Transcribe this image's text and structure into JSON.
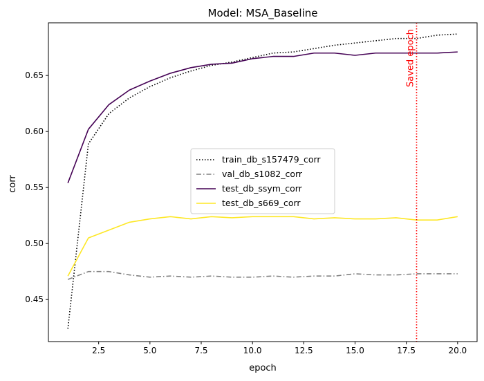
{
  "chart_data": {
    "type": "line",
    "title": "Model: MSA_Baseline",
    "xlabel": "epoch",
    "ylabel": "corr",
    "xlim": [
      0.05,
      20.95
    ],
    "ylim": [
      0.4125,
      0.697
    ],
    "xticks": [
      2.5,
      5.0,
      7.5,
      10.0,
      12.5,
      15.0,
      17.5,
      20.0
    ],
    "xtick_labels": [
      "2.5",
      "5.0",
      "7.5",
      "10.0",
      "12.5",
      "15.0",
      "17.5",
      "20.0"
    ],
    "yticks": [
      0.45,
      0.5,
      0.55,
      0.6,
      0.65
    ],
    "ytick_labels": [
      "0.45",
      "0.50",
      "0.55",
      "0.60",
      "0.65"
    ],
    "grid": false,
    "legend_position": "center",
    "x": [
      1,
      2,
      3,
      4,
      5,
      6,
      7,
      8,
      9,
      10,
      11,
      12,
      13,
      14,
      15,
      16,
      17,
      18,
      19,
      20
    ],
    "series": [
      {
        "name": "train_db_s157479_corr",
        "color": "#000000",
        "style": "dotted",
        "values": [
          0.424,
          0.589,
          0.616,
          0.63,
          0.64,
          0.648,
          0.654,
          0.659,
          0.662,
          0.666,
          0.67,
          0.671,
          0.674,
          0.677,
          0.679,
          0.681,
          0.683,
          0.683,
          0.686,
          0.687
        ]
      },
      {
        "name": "val_db_s1082_corr",
        "color": "#808080",
        "style": "dashdot",
        "values": [
          0.468,
          0.475,
          0.475,
          0.472,
          0.47,
          0.471,
          0.47,
          0.471,
          0.47,
          0.47,
          0.471,
          0.47,
          0.471,
          0.471,
          0.473,
          0.472,
          0.472,
          0.473,
          0.473,
          0.473
        ]
      },
      {
        "name": "test_db_ssym_corr",
        "color": "#440154",
        "style": "solid",
        "values": [
          0.554,
          0.602,
          0.624,
          0.637,
          0.645,
          0.652,
          0.657,
          0.66,
          0.661,
          0.665,
          0.667,
          0.667,
          0.67,
          0.67,
          0.668,
          0.67,
          0.67,
          0.67,
          0.67,
          0.671
        ]
      },
      {
        "name": "test_db_s669_corr",
        "color": "#fde725",
        "style": "solid",
        "values": [
          0.471,
          0.505,
          0.512,
          0.519,
          0.522,
          0.524,
          0.522,
          0.524,
          0.523,
          0.524,
          0.524,
          0.524,
          0.522,
          0.523,
          0.522,
          0.522,
          0.523,
          0.521,
          0.521,
          0.524
        ]
      }
    ],
    "annotations": [
      {
        "type": "vline",
        "x": 18,
        "label": "Saved epoch",
        "color": "#ff0000",
        "style": "dotted"
      }
    ]
  }
}
